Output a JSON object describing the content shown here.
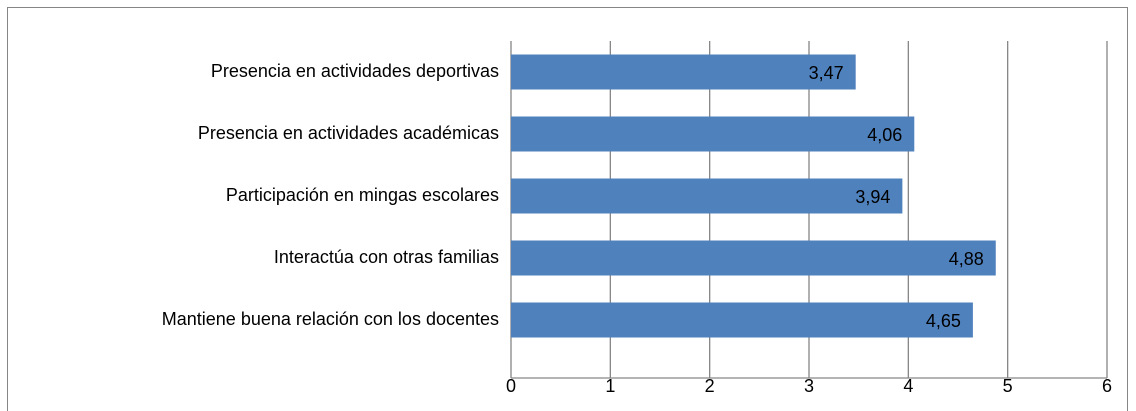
{
  "chart_data": {
    "type": "bar",
    "orientation": "horizontal",
    "categories": [
      "Presencia en actividades deportivas",
      "Presencia en actividades académicas",
      "Participación en mingas escolares",
      "Interactúa con otras familias",
      "Mantiene buena relación con los docentes"
    ],
    "values": [
      3.47,
      4.06,
      3.94,
      4.88,
      4.65
    ],
    "value_labels": [
      "3,47",
      "4,06",
      "3,94",
      "4,88",
      "4,65"
    ],
    "color": "#4f81bd",
    "xlim": [
      0,
      6
    ],
    "xticks": [
      0,
      1,
      2,
      3,
      4,
      5,
      6
    ],
    "grid": true
  }
}
